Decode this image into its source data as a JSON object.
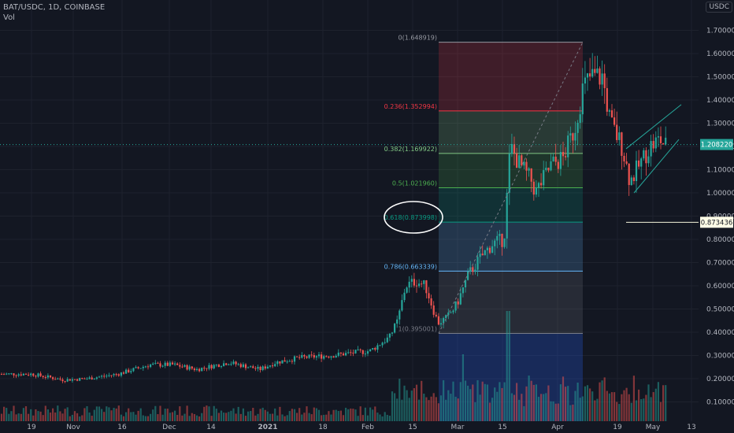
{
  "header": {
    "symbol": "BAT/USDC, 1D, COINBASE",
    "vol_label": "Vol"
  },
  "currency_badge": "USDC",
  "chart_data": {
    "type": "candlestick",
    "y_ticks": [
      "1.700000",
      "1.600000",
      "1.500000",
      "1.400000",
      "1.300000",
      "1.200000",
      "1.100000",
      "1.000000",
      "0.900000",
      "0.800000",
      "0.700000",
      "0.600000",
      "0.500000",
      "0.400000",
      "0.300000",
      "0.200000",
      "0.100000"
    ],
    "x_ticks": [
      "19",
      "Nov",
      "16",
      "Dec",
      "14",
      "2021",
      "18",
      "Feb",
      "15",
      "Mar",
      "15",
      "Apr",
      "19",
      "May",
      "13"
    ],
    "current_price": {
      "label": "1.208220",
      "value": 1.20822,
      "color": "#26a69a"
    },
    "horizontal_line": {
      "label": "0.873436",
      "value": 0.873436,
      "color": "#f5f5dc"
    },
    "fibonacci": [
      {
        "label": "0(1.648919)",
        "value": 1.648919,
        "color": "#9598a1"
      },
      {
        "label": "0.236(1.352994)",
        "value": 1.352994,
        "color": "#f23645"
      },
      {
        "label": "0.382(1.169922)",
        "value": 1.169922,
        "color": "#81c784"
      },
      {
        "label": "0.5(1.021960)",
        "value": 1.02196,
        "color": "#4caf50"
      },
      {
        "label": "0.618(0.873998)",
        "value": 0.873998,
        "color": "#089981"
      },
      {
        "label": "0.786(0.663339)",
        "value": 0.663339,
        "color": "#64b5f6"
      },
      {
        "label": "1(0.395001)",
        "value": 0.395001,
        "color": "#787b86"
      }
    ],
    "colors": {
      "up": "#26a69a",
      "down": "#ef5350",
      "grid": "#1e222d",
      "axis_text": "#b2b5be"
    },
    "annotation": "ellipse around the 0.618 level"
  }
}
